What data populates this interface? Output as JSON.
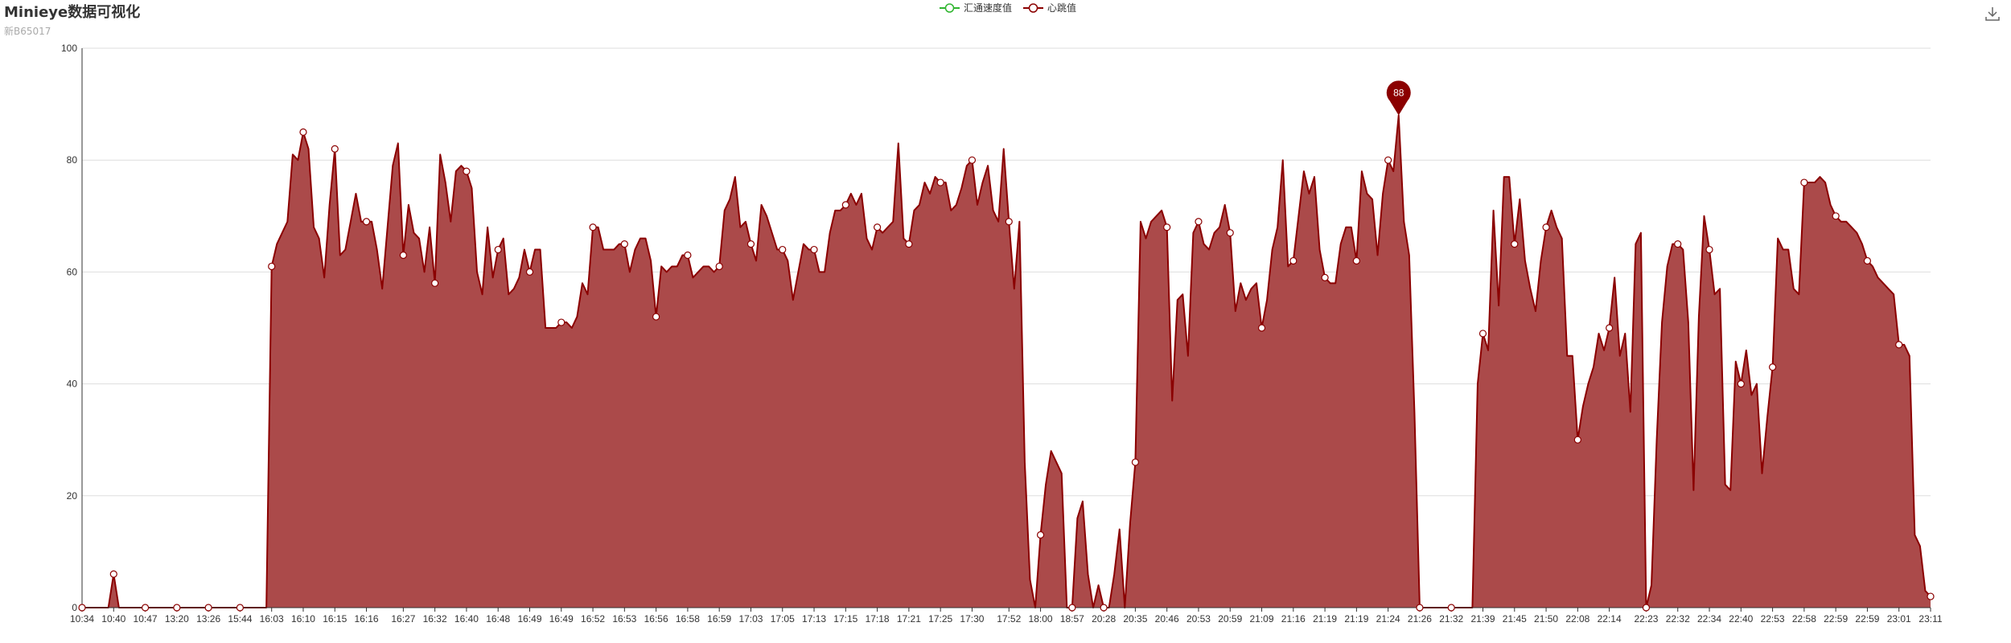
{
  "header": {
    "title": "Minieye数据可视化",
    "subtitle": "新B65017"
  },
  "toolbar": {
    "save_icon": "download-icon"
  },
  "legend": [
    {
      "name": "汇通速度值",
      "color": "#2fb52f"
    },
    {
      "name": "心跳值",
      "color": "#8b0000"
    }
  ],
  "colors": {
    "line": "#8b0000",
    "area": "#ab4a4a",
    "marker": "#8b0000"
  },
  "chart_data": {
    "type": "area",
    "title": "Minieye数据可视化",
    "subtitle": "新B65017",
    "ylim": [
      0,
      100
    ],
    "y_ticks": [
      0,
      20,
      40,
      60,
      80,
      100
    ],
    "x_tick_labels": [
      "10:34",
      "10:40",
      "10:47",
      "13:20",
      "13:26",
      "15:44",
      "16:03",
      "16:10",
      "16:15",
      "16:16",
      "16:27",
      "16:32",
      "16:40",
      "16:48",
      "16:49",
      "16:49",
      "16:52",
      "16:53",
      "16:56",
      "16:58",
      "16:59",
      "17:03",
      "17:05",
      "17:13",
      "17:15",
      "17:18",
      "17:21",
      "17:25",
      "17:30",
      "17:52",
      "18:00",
      "18:57",
      "20:28",
      "20:35",
      "20:46",
      "20:53",
      "20:59",
      "21:09",
      "21:16",
      "21:19",
      "21:19",
      "21:24",
      "21:26",
      "21:32",
      "21:39",
      "21:45",
      "21:50",
      "22:08",
      "22:14",
      "22:23",
      "22:32",
      "22:34",
      "22:40",
      "22:53",
      "22:58",
      "22:59",
      "22:59",
      "23:01",
      "23:11"
    ],
    "grid": true,
    "legend_position": "top-center",
    "series": [
      {
        "name": "汇通速度值",
        "values": []
      },
      {
        "name": "心跳值",
        "values": [
          0,
          0,
          0,
          0,
          0,
          0,
          6,
          0,
          0,
          0,
          0,
          0,
          0,
          0,
          0,
          0,
          0,
          0,
          0,
          0,
          0,
          0,
          0,
          0,
          0,
          0,
          0,
          0,
          0,
          0,
          0,
          0,
          0,
          0,
          0,
          0,
          61,
          65,
          67,
          69,
          81,
          80,
          85,
          82,
          68,
          66,
          59,
          72,
          82,
          63,
          64,
          69,
          74,
          69,
          69,
          69,
          64,
          57,
          68,
          79,
          83,
          63,
          72,
          67,
          66,
          60,
          68,
          58,
          81,
          76,
          69,
          78,
          79,
          78,
          75,
          60,
          56,
          68,
          59,
          64,
          66,
          56,
          57,
          59,
          64,
          60,
          64,
          64,
          50,
          50,
          50,
          51,
          51,
          50,
          52,
          58,
          56,
          68,
          68,
          64,
          64,
          64,
          65,
          65,
          60,
          64,
          66,
          66,
          62,
          52,
          61,
          60,
          61,
          61,
          63,
          63,
          59,
          60,
          61,
          61,
          60,
          61,
          71,
          73,
          77,
          68,
          69,
          65,
          62,
          72,
          70,
          67,
          64,
          64,
          62,
          55,
          60,
          65,
          64,
          64,
          60,
          60,
          67,
          71,
          71,
          72,
          74,
          72,
          74,
          66,
          64,
          68,
          67,
          68,
          69,
          83,
          66,
          65,
          71,
          72,
          76,
          74,
          77,
          76,
          76,
          71,
          72,
          75,
          79,
          80,
          72,
          76,
          79,
          71,
          69,
          82,
          69,
          57,
          69,
          26,
          5,
          0,
          13,
          22,
          28,
          26,
          24,
          0,
          0,
          16,
          19,
          6,
          0,
          4,
          0,
          0,
          6,
          14,
          0,
          15,
          26,
          69,
          66,
          69,
          70,
          71,
          68,
          37,
          55,
          56,
          45,
          67,
          69,
          65,
          64,
          67,
          68,
          72,
          67,
          53,
          58,
          55,
          57,
          58,
          50,
          55,
          64,
          68,
          80,
          61,
          62,
          70,
          78,
          74,
          77,
          64,
          59,
          58,
          58,
          65,
          68,
          68,
          62,
          78,
          74,
          73,
          63,
          74,
          80,
          78,
          88,
          69,
          63,
          35,
          0,
          0,
          0,
          0,
          0,
          0,
          0,
          0,
          0,
          0,
          0,
          40,
          49,
          46,
          71,
          54,
          77,
          77,
          65,
          73,
          62,
          57,
          53,
          62,
          68,
          71,
          68,
          66,
          45,
          45,
          30,
          36,
          40,
          43,
          49,
          46,
          50,
          59,
          45,
          49,
          35,
          65,
          67,
          0,
          4,
          30,
          51,
          61,
          65,
          65,
          64,
          51,
          21,
          52,
          70,
          64,
          56,
          57,
          22,
          21,
          44,
          40,
          46,
          38,
          40,
          24,
          34,
          43,
          66,
          64,
          64,
          57,
          56,
          76,
          76,
          76,
          77,
          76,
          72,
          70,
          69,
          69,
          68,
          67,
          65,
          62,
          61,
          59,
          58,
          57,
          56,
          47,
          47,
          45,
          13,
          11,
          3,
          2
        ]
      }
    ]
  }
}
